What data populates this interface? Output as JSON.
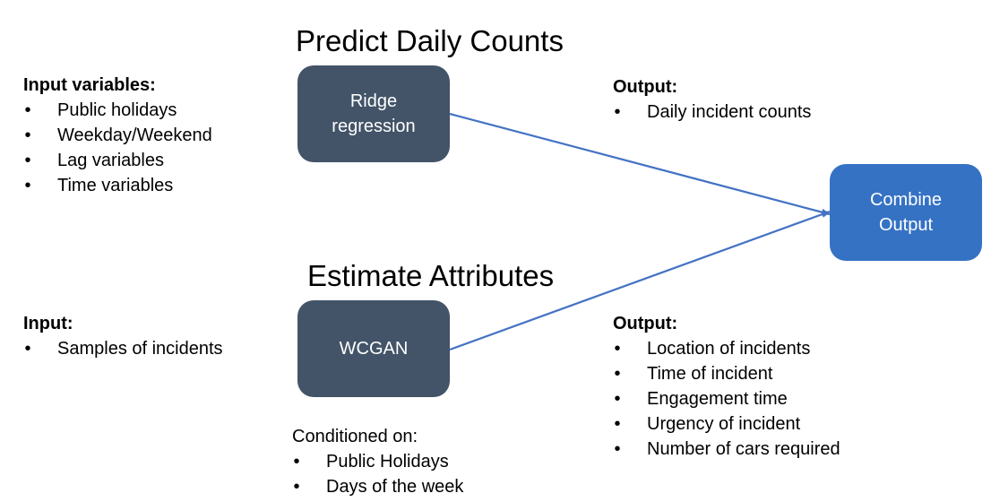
{
  "colors": {
    "model_box": "#435468",
    "output_box": "#3572C4",
    "arrow": "#4472C4",
    "text": "#000000",
    "background": "#ffffff"
  },
  "top_section": {
    "heading": "Predict Daily Counts",
    "model_line1": "Ridge",
    "model_line2": "regression",
    "input_label": "Input variables:",
    "inputs": [
      "Public holidays",
      "Weekday/Weekend",
      "Lag variables",
      "Time variables"
    ],
    "output_label": "Output:",
    "outputs": [
      "Daily incident counts"
    ]
  },
  "bottom_section": {
    "heading": "Estimate Attributes",
    "model_line1": "WCGAN",
    "input_label": "Input:",
    "inputs": [
      "Samples of incidents"
    ],
    "output_label": "Output:",
    "outputs": [
      "Location of incidents",
      "Time of incident",
      "Engagement time",
      "Urgency of incident",
      "Number of cars required"
    ],
    "condition_label": "Conditioned on:",
    "conditions": [
      "Public Holidays",
      "Days of the week"
    ]
  },
  "combine": {
    "line1": "Combine",
    "line2": "Output"
  },
  "bullet_glyph": "•"
}
